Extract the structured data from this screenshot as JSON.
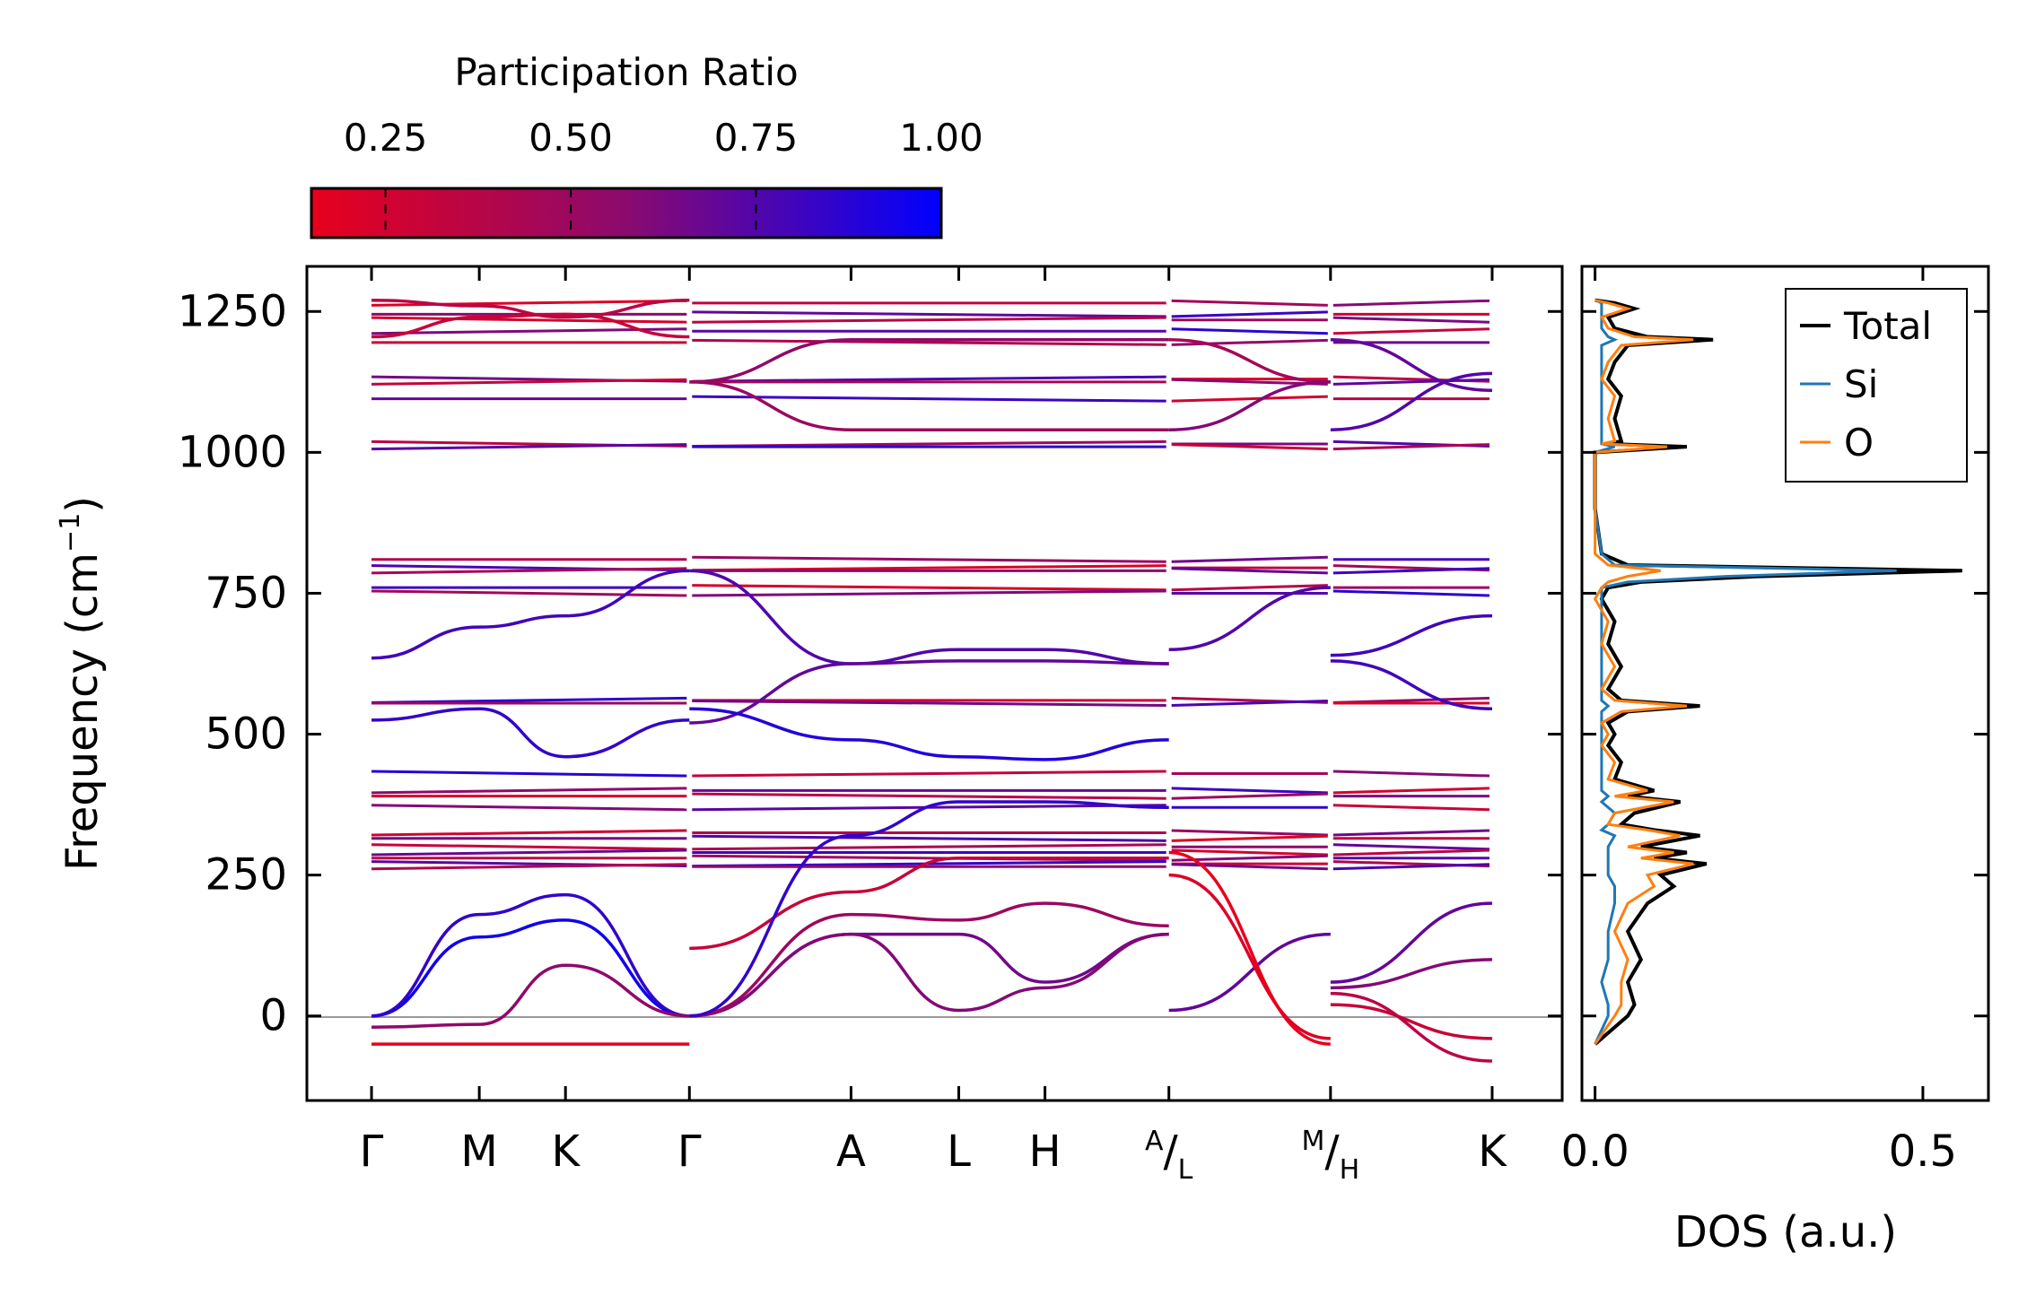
{
  "chart_data": [
    {
      "type": "line",
      "name": "phonon-band-structure",
      "ylabel": "Frequency (cm",
      "ylabel_sup": "−1",
      "ylabel_close": ")",
      "ylim": [
        -150,
        1330
      ],
      "yticks": [
        0,
        250,
        500,
        750,
        1000,
        1250
      ],
      "ytick_labels": [
        "0",
        "250",
        "500",
        "750",
        "1000",
        "1250"
      ],
      "segments": [
        {
          "labels": [
            "Γ",
            "M",
            "K",
            "Γ"
          ],
          "x": [
            0,
            1,
            1.8,
            2.95
          ]
        },
        {
          "labels": [
            "Γ",
            "A",
            "L",
            "H",
            "A"
          ],
          "x": [
            2.95,
            4.45,
            5.45,
            6.25,
            7.4
          ]
        },
        {
          "labels": [
            "L",
            "M"
          ],
          "x": [
            7.4,
            8.9
          ]
        },
        {
          "labels": [
            "H",
            "K"
          ],
          "x": [
            8.9,
            10.4
          ]
        }
      ],
      "xticks": [
        {
          "label": "Γ",
          "x": 0
        },
        {
          "label": "M",
          "x": 1
        },
        {
          "label": "K",
          "x": 1.8
        },
        {
          "label": "Γ",
          "x": 2.95
        },
        {
          "label": "A",
          "x": 4.45
        },
        {
          "label": "L",
          "x": 5.45
        },
        {
          "label": "H",
          "x": 6.25
        },
        {
          "top": "A",
          "bottom": "L",
          "x": 7.4
        },
        {
          "top": "M",
          "bottom": "H",
          "x": 8.9
        },
        {
          "label": "K",
          "x": 10.4
        }
      ],
      "bands_flat": [
        1265,
        1245,
        1235,
        1215,
        1195,
        1130,
        1125,
        1095,
        1015,
        1010,
        810,
        795,
        790,
        760,
        750,
        560,
        555,
        430,
        400,
        390,
        370,
        325,
        315,
        300,
        290,
        280,
        270,
        265
      ],
      "bands": [
        {
          "x": [
            0,
            1,
            1.8,
            2.95
          ],
          "y": [
            1205,
            1240,
            1245,
            1205
          ],
          "pr": 0.3
        },
        {
          "x": [
            0,
            1,
            1.8,
            2.95
          ],
          "y": [
            1270,
            1260,
            1240,
            1270
          ],
          "pr": 0.35
        },
        {
          "x": [
            2.95,
            4.45,
            7.4
          ],
          "y": [
            1125,
            1200,
            1200
          ],
          "pr": 0.55
        },
        {
          "x": [
            2.95,
            4.45,
            7.4
          ],
          "y": [
            1125,
            1040,
            1040
          ],
          "pr": 0.5
        },
        {
          "x": [
            7.4,
            8.9
          ],
          "y": [
            1200,
            1125
          ],
          "pr": 0.45
        },
        {
          "x": [
            7.4,
            8.9
          ],
          "y": [
            1040,
            1125
          ],
          "pr": 0.6
        },
        {
          "x": [
            8.9,
            10.4
          ],
          "y": [
            1200,
            1110
          ],
          "pr": 0.7
        },
        {
          "x": [
            8.9,
            10.4
          ],
          "y": [
            1040,
            1140
          ],
          "pr": 0.75
        },
        {
          "x": [
            0,
            1,
            1.8,
            2.95
          ],
          "y": [
            635,
            690,
            710,
            790
          ],
          "pr": 0.8
        },
        {
          "x": [
            2.95,
            4.45,
            5.45,
            6.25,
            7.4
          ],
          "y": [
            790,
            625,
            650,
            650,
            625
          ],
          "pr": 0.75
        },
        {
          "x": [
            2.95,
            4.45,
            5.45,
            6.25,
            7.4
          ],
          "y": [
            520,
            625,
            630,
            630,
            625
          ],
          "pr": 0.7
        },
        {
          "x": [
            7.4,
            8.9
          ],
          "y": [
            650,
            760
          ],
          "pr": 0.75
        },
        {
          "x": [
            8.9,
            10.4
          ],
          "y": [
            640,
            710
          ],
          "pr": 0.8
        },
        {
          "x": [
            8.9,
            10.4
          ],
          "y": [
            630,
            545
          ],
          "pr": 0.8
        },
        {
          "x": [
            0,
            1,
            1.8,
            2.95
          ],
          "y": [
            525,
            545,
            460,
            525
          ],
          "pr": 0.85
        },
        {
          "x": [
            2.95,
            4.45,
            5.45,
            6.25,
            7.4
          ],
          "y": [
            545,
            490,
            460,
            455,
            490
          ],
          "pr": 0.9
        },
        {
          "x": [
            0,
            1,
            1.8,
            2.95
          ],
          "y": [
            0,
            140,
            170,
            0
          ],
          "pr": 0.95
        },
        {
          "x": [
            0,
            1,
            1.8,
            2.95
          ],
          "y": [
            0,
            180,
            215,
            0
          ],
          "pr": 0.85
        },
        {
          "x": [
            0,
            1,
            1.8,
            2.95
          ],
          "y": [
            -20,
            -15,
            90,
            0
          ],
          "pr": 0.55
        },
        {
          "x": [
            0,
            1,
            1.8,
            2.95
          ],
          "y": [
            -50,
            -50,
            -50,
            -50
          ],
          "pr": 0.1
        },
        {
          "x": [
            2.95,
            4.45,
            5.45,
            6.25,
            7.4
          ],
          "y": [
            0,
            145,
            145,
            60,
            145
          ],
          "pr": 0.65
        },
        {
          "x": [
            2.95,
            4.45,
            5.45,
            6.25,
            7.4
          ],
          "y": [
            0,
            145,
            10,
            50,
            145
          ],
          "pr": 0.6
        },
        {
          "x": [
            2.95,
            4.45,
            5.45,
            6.25,
            7.4
          ],
          "y": [
            0,
            180,
            170,
            200,
            160
          ],
          "pr": 0.5
        },
        {
          "x": [
            2.95,
            4.45,
            5.45,
            6.25,
            7.4
          ],
          "y": [
            120,
            220,
            280,
            280,
            280
          ],
          "pr": 0.3
        },
        {
          "x": [
            2.95,
            4.45,
            5.45,
            6.25,
            7.4
          ],
          "y": [
            0,
            320,
            380,
            380,
            370
          ],
          "pr": 0.85
        },
        {
          "x": [
            7.4,
            8.9
          ],
          "y": [
            10,
            145
          ],
          "pr": 0.7
        },
        {
          "x": [
            7.4,
            8.9
          ],
          "y": [
            250,
            -40
          ],
          "pr": 0.2
        },
        {
          "x": [
            7.4,
            8.9
          ],
          "y": [
            290,
            -50
          ],
          "pr": 0.15
        },
        {
          "x": [
            8.9,
            10.4
          ],
          "y": [
            50,
            100
          ],
          "pr": 0.6
        },
        {
          "x": [
            8.9,
            10.4
          ],
          "y": [
            60,
            200
          ],
          "pr": 0.7
        },
        {
          "x": [
            8.9,
            10.4
          ],
          "y": [
            20,
            -40
          ],
          "pr": 0.3
        },
        {
          "x": [
            8.9,
            10.4
          ],
          "y": [
            40,
            -80
          ],
          "pr": 0.35
        }
      ]
    },
    {
      "type": "line",
      "name": "phonon-dos",
      "xlabel": "DOS (a.u.)",
      "xlim": [
        -0.02,
        0.6
      ],
      "xticks": [
        0.0,
        0.5
      ],
      "xtick_labels": [
        "0.0",
        "0.5"
      ],
      "legend_position": "top-right",
      "series": [
        {
          "name": "Total",
          "color": "#000000",
          "freq": [
            -50,
            0,
            20,
            60,
            100,
            150,
            200,
            230,
            250,
            270,
            280,
            290,
            300,
            320,
            330,
            340,
            360,
            380,
            390,
            400,
            420,
            450,
            480,
            500,
            520,
            540,
            550,
            560,
            580,
            620,
            660,
            700,
            740,
            760,
            770,
            780,
            790,
            800,
            820,
            900,
            1000,
            1010,
            1015,
            1020,
            1060,
            1100,
            1130,
            1160,
            1190,
            1200,
            1205,
            1220,
            1240,
            1255,
            1265,
            1270
          ],
          "dos": [
            0,
            0.05,
            0.06,
            0.05,
            0.07,
            0.05,
            0.08,
            0.12,
            0.1,
            0.17,
            0.09,
            0.14,
            0.07,
            0.16,
            0.09,
            0.04,
            0.06,
            0.13,
            0.05,
            0.09,
            0.03,
            0.04,
            0.02,
            0.03,
            0.02,
            0.05,
            0.16,
            0.04,
            0.02,
            0.04,
            0.02,
            0.03,
            0.01,
            0.02,
            0.07,
            0.25,
            0.56,
            0.05,
            0.01,
            0.0,
            0.0,
            0.14,
            0.02,
            0.04,
            0.03,
            0.04,
            0.02,
            0.03,
            0.05,
            0.18,
            0.08,
            0.03,
            0.02,
            0.06,
            0.03,
            0.0
          ]
        },
        {
          "name": "Si",
          "color": "#1f77b4",
          "freq": [
            -50,
            0,
            20,
            60,
            100,
            150,
            200,
            230,
            250,
            270,
            280,
            290,
            300,
            320,
            330,
            340,
            360,
            380,
            390,
            400,
            420,
            450,
            480,
            500,
            520,
            540,
            550,
            560,
            580,
            620,
            660,
            700,
            740,
            760,
            770,
            780,
            790,
            800,
            820,
            900,
            1000,
            1010,
            1015,
            1020,
            1060,
            1100,
            1130,
            1160,
            1190,
            1200,
            1205,
            1220,
            1240,
            1255,
            1265,
            1270
          ],
          "dos": [
            0,
            0.02,
            0.02,
            0.01,
            0.02,
            0.02,
            0.03,
            0.03,
            0.02,
            0.02,
            0.02,
            0.02,
            0.02,
            0.03,
            0.01,
            0.02,
            0.03,
            0.01,
            0.02,
            0.01,
            0.01,
            0.01,
            0.01,
            0.01,
            0.01,
            0.01,
            0.02,
            0.01,
            0.01,
            0.01,
            0.01,
            0.01,
            0.01,
            0.01,
            0.05,
            0.2,
            0.46,
            0.03,
            0.01,
            0.0,
            0.0,
            0.03,
            0.01,
            0.01,
            0.01,
            0.01,
            0.01,
            0.01,
            0.01,
            0.03,
            0.02,
            0.01,
            0.01,
            0.01,
            0.01,
            0.0
          ]
        },
        {
          "name": "O",
          "color": "#ff7f0e",
          "freq": [
            -50,
            0,
            20,
            60,
            100,
            150,
            200,
            230,
            250,
            270,
            280,
            290,
            300,
            320,
            330,
            340,
            360,
            380,
            390,
            400,
            420,
            450,
            480,
            500,
            520,
            540,
            550,
            560,
            580,
            620,
            660,
            700,
            740,
            760,
            770,
            780,
            790,
            800,
            820,
            900,
            1000,
            1010,
            1015,
            1020,
            1060,
            1100,
            1130,
            1160,
            1190,
            1200,
            1205,
            1220,
            1240,
            1255,
            1265,
            1270
          ],
          "dos": [
            0,
            0.03,
            0.04,
            0.04,
            0.05,
            0.03,
            0.05,
            0.09,
            0.08,
            0.15,
            0.07,
            0.12,
            0.05,
            0.13,
            0.08,
            0.02,
            0.03,
            0.12,
            0.03,
            0.08,
            0.02,
            0.03,
            0.01,
            0.02,
            0.01,
            0.04,
            0.14,
            0.03,
            0.01,
            0.03,
            0.01,
            0.02,
            0.0,
            0.01,
            0.02,
            0.05,
            0.1,
            0.02,
            0.0,
            0.0,
            0.0,
            0.11,
            0.01,
            0.03,
            0.02,
            0.03,
            0.01,
            0.02,
            0.04,
            0.15,
            0.06,
            0.02,
            0.01,
            0.05,
            0.02,
            0.0
          ]
        }
      ]
    },
    {
      "type": "colorbar",
      "name": "participation-ratio-colorbar",
      "title": "Participation Ratio",
      "range": [
        0.15,
        1.0
      ],
      "ticks": [
        0.25,
        0.5,
        0.75,
        1.0
      ],
      "tick_labels": [
        "0.25",
        "0.50",
        "0.75",
        "1.00"
      ],
      "colors": [
        "#e8001c",
        "#8b0a6e",
        "#0000ff"
      ]
    }
  ],
  "colors": {
    "axis": "#000000",
    "zero_line": "#999999"
  }
}
